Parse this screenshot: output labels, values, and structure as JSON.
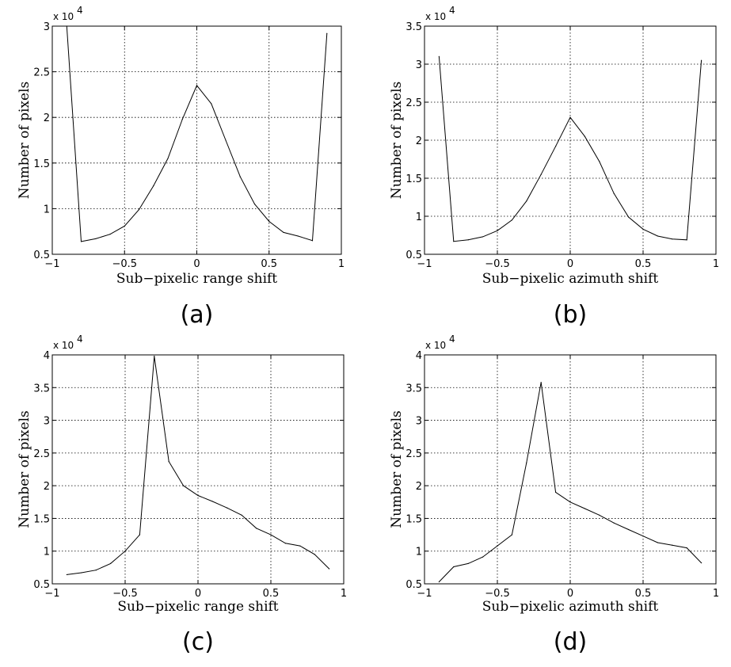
{
  "chart_data": [
    {
      "type": "line",
      "caption": "(a)",
      "xlabel": "Sub−pixelic range shift",
      "ylabel": "Number of pixels",
      "y_multiplier": "x 10",
      "y_multiplier_exp": "4",
      "xlim": [
        -1,
        1
      ],
      "ylim": [
        0.5,
        3
      ],
      "xticks": [
        -1,
        -0.5,
        0,
        0.5,
        1
      ],
      "xtick_labels": [
        "−1",
        "−0.5",
        "0",
        "0.5",
        "1"
      ],
      "yticks": [
        0.5,
        1,
        1.5,
        2,
        2.5,
        3
      ],
      "ytick_labels": [
        "0.5",
        "1",
        "1.5",
        "2",
        "2.5",
        "3"
      ],
      "grid": true,
      "x": [
        -0.9,
        -0.8,
        -0.7,
        -0.6,
        -0.5,
        -0.4,
        -0.3,
        -0.2,
        -0.1,
        0,
        0.1,
        0.2,
        0.3,
        0.4,
        0.5,
        0.6,
        0.7,
        0.8,
        0.9
      ],
      "values": [
        3.0,
        0.64,
        0.67,
        0.72,
        0.81,
        0.99,
        1.25,
        1.55,
        1.98,
        2.35,
        2.15,
        1.75,
        1.35,
        1.05,
        0.86,
        0.74,
        0.7,
        0.65,
        2.92
      ],
      "color": "#000000"
    },
    {
      "type": "line",
      "caption": "(b)",
      "xlabel": "Sub−pixelic azimuth shift",
      "ylabel": "Number of pixels",
      "y_multiplier": "x 10",
      "y_multiplier_exp": "4",
      "xlim": [
        -1,
        1
      ],
      "ylim": [
        0.5,
        3.5
      ],
      "xticks": [
        -1,
        -0.5,
        0,
        0.5,
        1
      ],
      "xtick_labels": [
        "−1",
        "−0.5",
        "0",
        "0.5",
        "1"
      ],
      "yticks": [
        0.5,
        1,
        1.5,
        2,
        2.5,
        3,
        3.5
      ],
      "ytick_labels": [
        "0.5",
        "1",
        "1.5",
        "2",
        "2.5",
        "3",
        "3.5"
      ],
      "grid": true,
      "x": [
        -0.9,
        -0.8,
        -0.7,
        -0.6,
        -0.5,
        -0.4,
        -0.3,
        -0.2,
        -0.1,
        0,
        0.1,
        0.2,
        0.3,
        0.4,
        0.5,
        0.6,
        0.7,
        0.8,
        0.9
      ],
      "values": [
        3.1,
        0.67,
        0.69,
        0.73,
        0.81,
        0.95,
        1.2,
        1.55,
        1.92,
        2.3,
        2.05,
        1.72,
        1.3,
        0.99,
        0.83,
        0.74,
        0.7,
        0.69,
        3.05
      ],
      "color": "#000000"
    },
    {
      "type": "line",
      "caption": "(c)",
      "xlabel": "Sub−pixelic range shift",
      "ylabel": "Number of pixels",
      "y_multiplier": "x 10",
      "y_multiplier_exp": "4",
      "xlim": [
        -1,
        1
      ],
      "ylim": [
        0.5,
        4
      ],
      "xticks": [
        -1,
        -0.5,
        0,
        0.5,
        1
      ],
      "xtick_labels": [
        "−1",
        "−0.5",
        "0",
        "0.5",
        "1"
      ],
      "yticks": [
        0.5,
        1,
        1.5,
        2,
        2.5,
        3,
        3.5,
        4
      ],
      "ytick_labels": [
        "0.5",
        "1",
        "1.5",
        "2",
        "2.5",
        "3",
        "3.5",
        "4"
      ],
      "grid": true,
      "x": [
        -0.9,
        -0.8,
        -0.7,
        -0.6,
        -0.5,
        -0.4,
        -0.3,
        -0.2,
        -0.1,
        0,
        0.1,
        0.2,
        0.3,
        0.4,
        0.5,
        0.6,
        0.7,
        0.8,
        0.9
      ],
      "values": [
        0.64,
        0.67,
        0.71,
        0.81,
        1.0,
        1.25,
        3.98,
        2.37,
        2.0,
        1.85,
        1.76,
        1.66,
        1.55,
        1.35,
        1.25,
        1.12,
        1.08,
        0.95,
        0.73
      ],
      "color": "#000000"
    },
    {
      "type": "line",
      "caption": "(d)",
      "xlabel": "Sub−pixelic azimuth shift",
      "ylabel": "Number of pixels",
      "y_multiplier": "x 10",
      "y_multiplier_exp": "4",
      "xlim": [
        -1,
        1
      ],
      "ylim": [
        0.5,
        4
      ],
      "xticks": [
        -1,
        -0.5,
        0,
        0.5,
        1
      ],
      "xtick_labels": [
        "−1",
        "−0.5",
        "0",
        "0.5",
        "1"
      ],
      "yticks": [
        0.5,
        1,
        1.5,
        2,
        2.5,
        3,
        3.5,
        4
      ],
      "ytick_labels": [
        "0.5",
        "1",
        "1.5",
        "2",
        "2.5",
        "3",
        "3.5",
        "4"
      ],
      "grid": true,
      "x": [
        -0.9,
        -0.8,
        -0.7,
        -0.6,
        -0.5,
        -0.4,
        -0.3,
        -0.2,
        -0.1,
        0,
        0.1,
        0.2,
        0.3,
        0.4,
        0.5,
        0.6,
        0.7,
        0.8,
        0.9
      ],
      "values": [
        0.53,
        0.76,
        0.81,
        0.91,
        1.08,
        1.25,
        2.35,
        3.58,
        1.9,
        1.75,
        1.65,
        1.55,
        1.43,
        1.33,
        1.23,
        1.13,
        1.09,
        1.05,
        0.82
      ],
      "color": "#000000"
    }
  ]
}
